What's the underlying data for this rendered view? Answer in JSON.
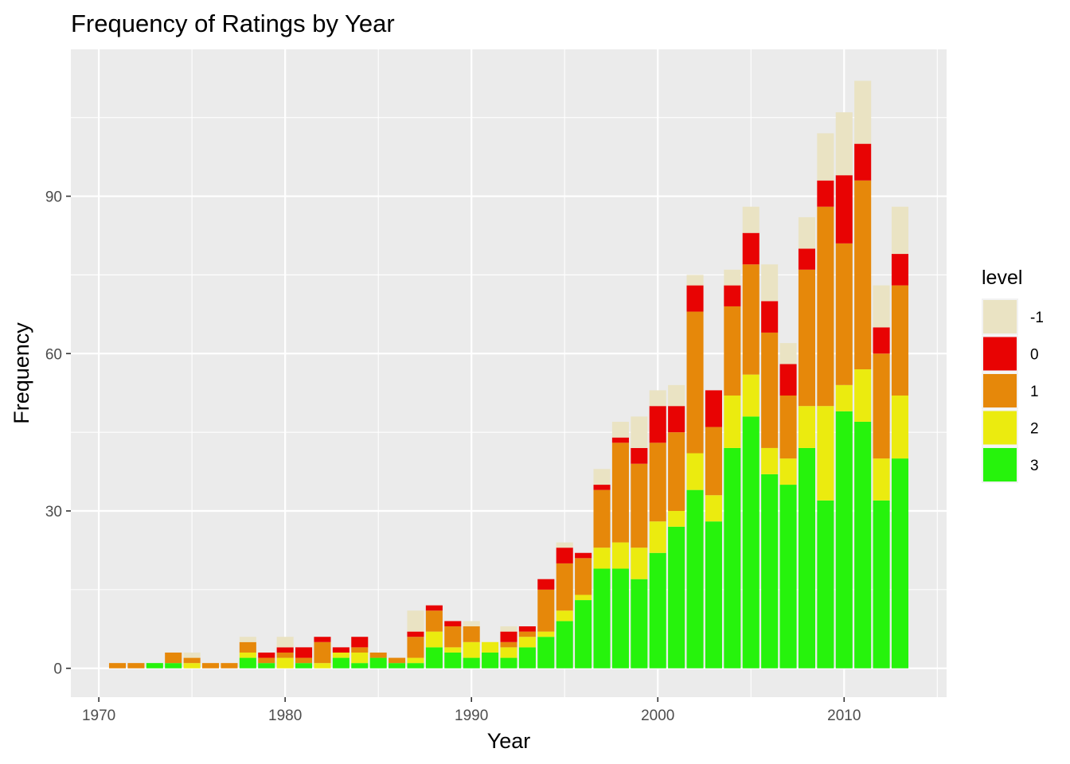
{
  "chart_data": {
    "type": "bar",
    "stacked": true,
    "title": "Frequency of Ratings by Year",
    "xlabel": "Year",
    "ylabel": "Frequency",
    "xlim": [
      1968.5,
      2015.5
    ],
    "ylim": [
      -5.5,
      118
    ],
    "x_ticks": [
      1970,
      1980,
      1990,
      2000,
      2010
    ],
    "y_ticks": [
      0,
      30,
      60,
      90
    ],
    "grid": true,
    "legend": {
      "title": "level",
      "position": "right",
      "entries": [
        "-1",
        "0",
        "1",
        "2",
        "3"
      ]
    },
    "years": [
      1971,
      1972,
      1973,
      1974,
      1975,
      1976,
      1977,
      1978,
      1979,
      1980,
      1981,
      1982,
      1983,
      1984,
      1985,
      1986,
      1987,
      1988,
      1989,
      1990,
      1991,
      1992,
      1993,
      1994,
      1995,
      1996,
      1997,
      1998,
      1999,
      2000,
      2001,
      2002,
      2003,
      2004,
      2005,
      2006,
      2007,
      2008,
      2009,
      2010,
      2011,
      2012,
      2013
    ],
    "series": [
      {
        "name": "3",
        "color": "#26F30C",
        "values": [
          0,
          0,
          1,
          1,
          0,
          0,
          0,
          2,
          1,
          0,
          1,
          0,
          2,
          1,
          2,
          1,
          1,
          4,
          3,
          2,
          3,
          2,
          4,
          6,
          9,
          13,
          19,
          19,
          17,
          22,
          27,
          34,
          28,
          42,
          48,
          37,
          35,
          42,
          32,
          49,
          47,
          32,
          40
        ]
      },
      {
        "name": "2",
        "color": "#EBEB0F",
        "values": [
          0,
          0,
          0,
          0,
          1,
          0,
          0,
          1,
          0,
          2,
          0,
          1,
          1,
          2,
          0,
          0,
          1,
          3,
          1,
          3,
          2,
          2,
          2,
          1,
          2,
          1,
          4,
          5,
          6,
          6,
          3,
          7,
          5,
          10,
          8,
          5,
          5,
          8,
          18,
          5,
          10,
          8,
          12
        ]
      },
      {
        "name": "1",
        "color": "#E6880A",
        "values": [
          1,
          1,
          0,
          2,
          1,
          1,
          1,
          2,
          1,
          1,
          1,
          4,
          0,
          1,
          1,
          1,
          4,
          4,
          4,
          3,
          0,
          1,
          1,
          8,
          9,
          7,
          11,
          19,
          16,
          15,
          15,
          27,
          13,
          17,
          21,
          22,
          12,
          26,
          38,
          27,
          36,
          20,
          21
        ]
      },
      {
        "name": "0",
        "color": "#E80303",
        "values": [
          0,
          0,
          0,
          0,
          0,
          0,
          0,
          0,
          1,
          1,
          2,
          1,
          1,
          2,
          0,
          0,
          1,
          1,
          1,
          0,
          0,
          2,
          1,
          2,
          3,
          1,
          1,
          1,
          3,
          7,
          5,
          5,
          7,
          4,
          6,
          6,
          6,
          4,
          5,
          13,
          7,
          5,
          6
        ]
      },
      {
        "name": "-1",
        "color": "#EAE3C3",
        "values": [
          0,
          0,
          0,
          0,
          1,
          0,
          0,
          1,
          0,
          2,
          0,
          0,
          0,
          0,
          0,
          0,
          4,
          0,
          0,
          1,
          0,
          1,
          0,
          0,
          1,
          0,
          3,
          3,
          6,
          3,
          4,
          2,
          0,
          3,
          5,
          7,
          4,
          6,
          9,
          12,
          12,
          8,
          9
        ]
      }
    ]
  }
}
